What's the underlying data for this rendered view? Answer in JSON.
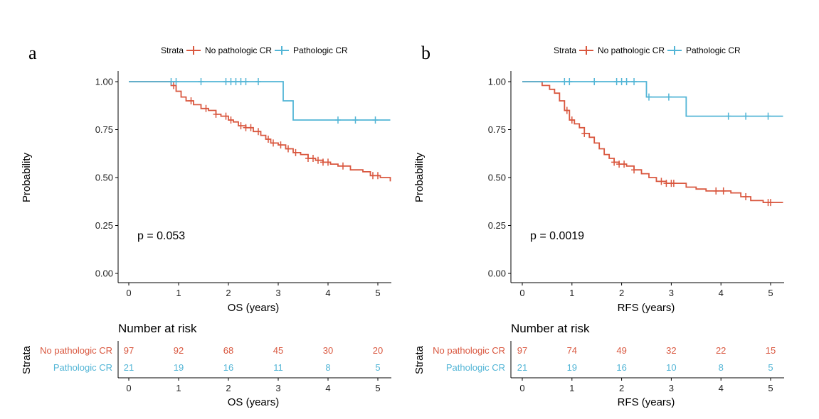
{
  "colors": {
    "no_pcr": "#D9573F",
    "pcr": "#52B5D6"
  },
  "chart_data": [
    {
      "type": "line",
      "panel_letter": "a",
      "legend_title": "Strata",
      "xlabel": "OS (years)",
      "ylabel": "Probability",
      "xlim": [
        0,
        5
      ],
      "ylim": [
        0,
        1
      ],
      "x_ticks": [
        "0",
        "1",
        "2",
        "3",
        "4",
        "5"
      ],
      "y_ticks": [
        "0.00",
        "0.25",
        "0.50",
        "0.75",
        "1.00"
      ],
      "grid": false,
      "legend_position": "top",
      "p_value_text": "p = 0.053",
      "series": [
        {
          "name": "No pathologic CR",
          "x": [
            0,
            0.85,
            0.95,
            1.05,
            1.15,
            1.3,
            1.45,
            1.6,
            1.75,
            1.85,
            2.0,
            2.1,
            2.2,
            2.35,
            2.5,
            2.65,
            2.75,
            2.85,
            3.0,
            3.15,
            3.3,
            3.45,
            3.6,
            3.75,
            3.9,
            4.05,
            4.2,
            4.45,
            4.7,
            4.85,
            5.05,
            5.25
          ],
          "y": [
            1.0,
            0.98,
            0.95,
            0.92,
            0.9,
            0.88,
            0.86,
            0.85,
            0.83,
            0.82,
            0.8,
            0.79,
            0.77,
            0.76,
            0.74,
            0.72,
            0.7,
            0.68,
            0.67,
            0.65,
            0.63,
            0.62,
            0.6,
            0.59,
            0.58,
            0.57,
            0.56,
            0.54,
            0.53,
            0.51,
            0.5,
            0.48
          ],
          "censor_x": [
            0.9,
            1.25,
            1.55,
            1.75,
            1.95,
            2.05,
            2.25,
            2.35,
            2.45,
            2.6,
            2.8,
            2.9,
            3.05,
            3.2,
            3.35,
            3.6,
            3.7,
            3.8,
            3.9,
            4.0,
            4.3,
            4.9,
            5.0
          ]
        },
        {
          "name": "Pathologic CR",
          "x": [
            0,
            3.1,
            3.3,
            5.25
          ],
          "y": [
            1.0,
            0.9,
            0.8,
            0.8
          ],
          "censor_x": [
            0.85,
            0.95,
            1.45,
            1.95,
            2.05,
            2.15,
            2.25,
            2.35,
            2.6,
            4.2,
            4.55,
            4.95
          ]
        }
      ],
      "risk_table": {
        "title": "Number at risk",
        "y_title": "Strata",
        "xlabel": "OS (years)",
        "rows": [
          {
            "label": "No pathologic CR",
            "values": [
              "97",
              "92",
              "68",
              "45",
              "30",
              "20"
            ]
          },
          {
            "label": "Pathologic CR",
            "values": [
              "21",
              "19",
              "16",
              "11",
              "8",
              "5"
            ]
          }
        ]
      }
    },
    {
      "type": "line",
      "panel_letter": "b",
      "legend_title": "Strata",
      "xlabel": "RFS (years)",
      "ylabel": "Probability",
      "xlim": [
        0,
        5
      ],
      "ylim": [
        0,
        1
      ],
      "x_ticks": [
        "0",
        "1",
        "2",
        "3",
        "4",
        "5"
      ],
      "y_ticks": [
        "0.00",
        "0.25",
        "0.50",
        "0.75",
        "1.00"
      ],
      "grid": false,
      "legend_position": "top",
      "p_value_text": "p = 0.0019",
      "series": [
        {
          "name": "No pathologic CR",
          "x": [
            0,
            0.4,
            0.55,
            0.65,
            0.75,
            0.85,
            0.95,
            1.05,
            1.15,
            1.25,
            1.35,
            1.45,
            1.55,
            1.65,
            1.75,
            1.85,
            1.95,
            2.1,
            2.25,
            2.4,
            2.55,
            2.7,
            2.9,
            3.1,
            3.3,
            3.5,
            3.7,
            3.9,
            4.2,
            4.4,
            4.6,
            4.85,
            5.25
          ],
          "y": [
            1.0,
            0.98,
            0.96,
            0.94,
            0.9,
            0.85,
            0.8,
            0.78,
            0.76,
            0.73,
            0.71,
            0.68,
            0.65,
            0.62,
            0.6,
            0.58,
            0.57,
            0.56,
            0.54,
            0.52,
            0.5,
            0.48,
            0.47,
            0.47,
            0.45,
            0.44,
            0.43,
            0.43,
            0.42,
            0.4,
            0.38,
            0.37,
            0.37
          ],
          "censor_x": [
            0.9,
            1.0,
            1.25,
            1.85,
            1.95,
            2.05,
            2.25,
            2.8,
            2.9,
            3.0,
            3.05,
            3.9,
            4.05,
            4.5,
            4.95,
            5.0
          ]
        },
        {
          "name": "Pathologic CR",
          "x": [
            0,
            2.5,
            3.3,
            5.25
          ],
          "y": [
            1.0,
            0.92,
            0.82,
            0.82
          ],
          "censor_x": [
            0.85,
            0.95,
            1.45,
            1.9,
            2.0,
            2.1,
            2.25,
            2.55,
            2.95,
            4.15,
            4.5,
            4.95
          ]
        }
      ],
      "risk_table": {
        "title": "Number at risk",
        "y_title": "Strata",
        "xlabel": "RFS (years)",
        "rows": [
          {
            "label": "No pathologic CR",
            "values": [
              "97",
              "74",
              "49",
              "32",
              "22",
              "15"
            ]
          },
          {
            "label": "Pathologic CR",
            "values": [
              "21",
              "19",
              "16",
              "10",
              "8",
              "5"
            ]
          }
        ]
      }
    }
  ]
}
